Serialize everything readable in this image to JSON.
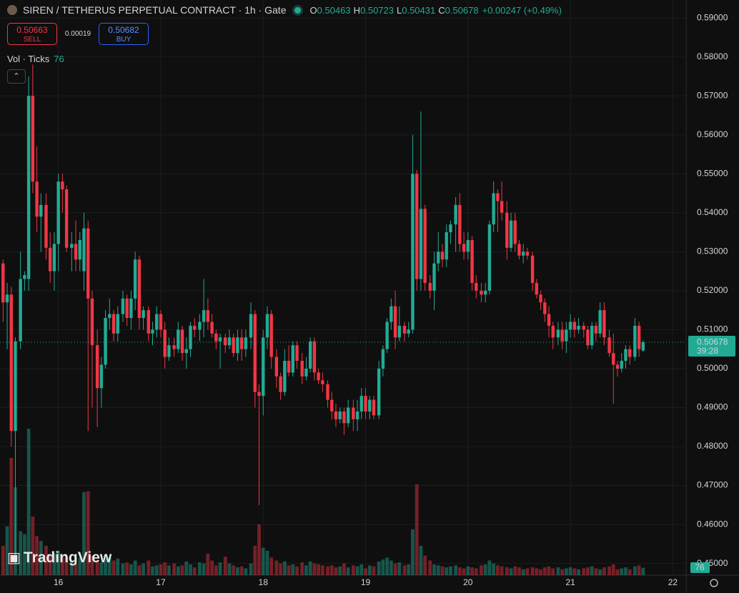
{
  "chart_data": {
    "type": "candlestick",
    "title": "SIREN / TETHERUS PERPETUAL CONTRACT · 1h · Gate",
    "ohlc_legend": [
      {
        "label": "O",
        "value": 0.50463
      },
      {
        "label": "H",
        "value": 0.50723
      },
      {
        "label": "L",
        "value": 0.50431
      },
      {
        "label": "C",
        "value": 0.50678
      }
    ],
    "change": "+0.00247 (+0.49%)",
    "trade_panel": {
      "sell_price": 0.50663,
      "sell_label": "SELL",
      "spread": 0.00019,
      "buy_price": 0.50682,
      "buy_label": "BUY"
    },
    "volume_indicator": {
      "label": "Vol · Ticks",
      "value": 76
    },
    "last_price": 0.50678,
    "countdown": "39:28",
    "last_volume": 76,
    "watermark": "TradingView",
    "up_color": "#22ab94",
    "down_color": "#f23645",
    "grid": true,
    "xlim": [
      15.43,
      22.13
    ],
    "xticks": [
      16,
      17,
      18,
      19,
      20,
      21,
      22
    ],
    "ylim": [
      0.447,
      0.5946
    ],
    "yticks": [
      {
        "value": 0.45,
        "label": "0.45000"
      },
      {
        "value": 0.46,
        "label": "0.46000"
      },
      {
        "value": 0.47,
        "label": "0.47000"
      },
      {
        "value": 0.48,
        "label": "0.48000"
      },
      {
        "value": 0.49,
        "label": "0.49000"
      },
      {
        "value": 0.5,
        "label": "0.50000"
      },
      {
        "value": 0.51,
        "label": "0.51000"
      },
      {
        "value": 0.52,
        "label": "0.52000"
      },
      {
        "value": 0.53,
        "label": "0.53000"
      },
      {
        "value": 0.54,
        "label": "0.54000"
      },
      {
        "value": 0.55,
        "label": "0.55000"
      },
      {
        "value": 0.56,
        "label": "0.56000"
      },
      {
        "value": 0.57,
        "label": "0.57000"
      },
      {
        "value": 0.58,
        "label": "0.58000"
      },
      {
        "value": 0.59,
        "label": "0.59000"
      }
    ],
    "x": [
      15.46,
      15.5,
      15.54,
      15.58,
      15.63,
      15.67,
      15.71,
      15.75,
      15.79,
      15.83,
      15.88,
      15.92,
      15.96,
      16.0,
      16.04,
      16.08,
      16.13,
      16.17,
      16.21,
      16.25,
      16.29,
      16.33,
      16.38,
      16.42,
      16.46,
      16.5,
      16.54,
      16.58,
      16.63,
      16.67,
      16.71,
      16.75,
      16.79,
      16.83,
      16.88,
      16.92,
      16.96,
      17.0,
      17.04,
      17.08,
      17.13,
      17.17,
      17.21,
      17.25,
      17.29,
      17.33,
      17.38,
      17.42,
      17.46,
      17.5,
      17.54,
      17.58,
      17.63,
      17.67,
      17.71,
      17.75,
      17.79,
      17.83,
      17.88,
      17.92,
      17.96,
      18.0,
      18.04,
      18.08,
      18.13,
      18.17,
      18.21,
      18.25,
      18.29,
      18.33,
      18.38,
      18.42,
      18.46,
      18.5,
      18.54,
      18.58,
      18.63,
      18.67,
      18.71,
      18.75,
      18.79,
      18.83,
      18.88,
      18.92,
      18.96,
      19.0,
      19.04,
      19.08,
      19.13,
      19.17,
      19.21,
      19.25,
      19.29,
      19.33,
      19.38,
      19.42,
      19.46,
      19.5,
      19.54,
      19.58,
      19.63,
      19.67,
      19.71,
      19.75,
      19.79,
      19.83,
      19.88,
      19.92,
      19.96,
      20.0,
      20.04,
      20.08,
      20.13,
      20.17,
      20.21,
      20.25,
      20.29,
      20.33,
      20.38,
      20.42,
      20.46,
      20.5,
      20.54,
      20.58,
      20.63,
      20.67,
      20.71,
      20.75,
      20.79,
      20.83,
      20.88,
      20.92,
      20.96,
      21.0,
      21.04,
      21.08,
      21.13,
      21.17,
      21.21,
      21.25,
      21.29,
      21.33,
      21.38,
      21.42,
      21.46,
      21.5,
      21.54,
      21.58,
      21.63,
      21.67,
      21.71
    ],
    "open": [
      0.527,
      0.517,
      0.519,
      0.484,
      0.507,
      0.523,
      0.523,
      0.57,
      0.548,
      0.539,
      0.542,
      0.531,
      0.525,
      0.532,
      0.548,
      0.546,
      0.531,
      0.532,
      0.528,
      0.525,
      0.536,
      0.518,
      0.506,
      0.495,
      0.501,
      0.513,
      0.514,
      0.509,
      0.514,
      0.518,
      0.513,
      0.518,
      0.528,
      0.513,
      0.515,
      0.509,
      0.51,
      0.514,
      0.51,
      0.503,
      0.506,
      0.505,
      0.51,
      0.504,
      0.505,
      0.511,
      0.51,
      0.512,
      0.515,
      0.512,
      0.509,
      0.507,
      0.508,
      0.506,
      0.508,
      0.504,
      0.508,
      0.505,
      0.508,
      0.514,
      0.494,
      0.493,
      0.508,
      0.514,
      0.503,
      0.498,
      0.494,
      0.502,
      0.499,
      0.506,
      0.502,
      0.498,
      0.5,
      0.507,
      0.499,
      0.497,
      0.496,
      0.492,
      0.489,
      0.487,
      0.489,
      0.486,
      0.49,
      0.487,
      0.489,
      0.493,
      0.489,
      0.492,
      0.488,
      0.5,
      0.505,
      0.512,
      0.516,
      0.508,
      0.511,
      0.509,
      0.51,
      0.55,
      0.523,
      0.541,
      0.522,
      0.52,
      0.527,
      0.53,
      0.528,
      0.535,
      0.537,
      0.542,
      0.532,
      0.53,
      0.533,
      0.522,
      0.52,
      0.519,
      0.52,
      0.537,
      0.545,
      0.543,
      0.54,
      0.531,
      0.538,
      0.532,
      0.529,
      0.53,
      0.529,
      0.522,
      0.519,
      0.517,
      0.514,
      0.511,
      0.508,
      0.51,
      0.507,
      0.51,
      0.512,
      0.51,
      0.511,
      0.51,
      0.506,
      0.511,
      0.509,
      0.515,
      0.508,
      0.504,
      0.501,
      0.5,
      0.502,
      0.505,
      0.503,
      0.511,
      0.50463
    ],
    "high": [
      0.528,
      0.522,
      0.521,
      0.508,
      0.53,
      0.525,
      0.575,
      0.578,
      0.557,
      0.545,
      0.545,
      0.535,
      0.535,
      0.55,
      0.55,
      0.547,
      0.535,
      0.538,
      0.535,
      0.54,
      0.538,
      0.52,
      0.51,
      0.503,
      0.515,
      0.518,
      0.515,
      0.516,
      0.52,
      0.519,
      0.52,
      0.53,
      0.529,
      0.516,
      0.516,
      0.512,
      0.516,
      0.515,
      0.512,
      0.508,
      0.508,
      0.512,
      0.511,
      0.508,
      0.512,
      0.513,
      0.514,
      0.523,
      0.518,
      0.514,
      0.51,
      0.509,
      0.509,
      0.51,
      0.509,
      0.51,
      0.51,
      0.51,
      0.517,
      0.515,
      0.496,
      0.51,
      0.516,
      0.515,
      0.505,
      0.499,
      0.505,
      0.506,
      0.507,
      0.507,
      0.504,
      0.503,
      0.508,
      0.508,
      0.5,
      0.499,
      0.497,
      0.494,
      0.491,
      0.49,
      0.49,
      0.492,
      0.492,
      0.492,
      0.495,
      0.495,
      0.493,
      0.493,
      0.502,
      0.506,
      0.513,
      0.518,
      0.52,
      0.516,
      0.512,
      0.512,
      0.56,
      0.551,
      0.566,
      0.542,
      0.524,
      0.53,
      0.535,
      0.532,
      0.537,
      0.538,
      0.544,
      0.545,
      0.535,
      0.535,
      0.534,
      0.524,
      0.522,
      0.522,
      0.538,
      0.548,
      0.546,
      0.548,
      0.543,
      0.54,
      0.54,
      0.533,
      0.532,
      0.531,
      0.53,
      0.523,
      0.52,
      0.518,
      0.516,
      0.512,
      0.512,
      0.512,
      0.512,
      0.514,
      0.513,
      0.513,
      0.512,
      0.511,
      0.512,
      0.512,
      0.517,
      0.517,
      0.51,
      0.509,
      0.502,
      0.504,
      0.506,
      0.506,
      0.513,
      0.512,
      0.50723
    ],
    "low": [
      0.512,
      0.505,
      0.48,
      0.45,
      0.505,
      0.52,
      0.52,
      0.545,
      0.535,
      0.53,
      0.528,
      0.522,
      0.52,
      0.525,
      0.54,
      0.53,
      0.525,
      0.525,
      0.525,
      0.52,
      0.484,
      0.49,
      0.485,
      0.49,
      0.5,
      0.51,
      0.507,
      0.507,
      0.512,
      0.511,
      0.51,
      0.515,
      0.51,
      0.51,
      0.507,
      0.506,
      0.508,
      0.508,
      0.5,
      0.502,
      0.503,
      0.504,
      0.502,
      0.5,
      0.503,
      0.508,
      0.507,
      0.508,
      0.51,
      0.508,
      0.505,
      0.5,
      0.504,
      0.505,
      0.503,
      0.502,
      0.502,
      0.503,
      0.505,
      0.49,
      0.465,
      0.488,
      0.505,
      0.5,
      0.495,
      0.492,
      0.493,
      0.498,
      0.498,
      0.5,
      0.496,
      0.497,
      0.499,
      0.497,
      0.496,
      0.494,
      0.49,
      0.487,
      0.485,
      0.486,
      0.483,
      0.485,
      0.484,
      0.484,
      0.487,
      0.487,
      0.487,
      0.487,
      0.487,
      0.498,
      0.504,
      0.51,
      0.505,
      0.507,
      0.507,
      0.508,
      0.509,
      0.52,
      0.52,
      0.52,
      0.518,
      0.515,
      0.525,
      0.526,
      0.526,
      0.532,
      0.53,
      0.53,
      0.528,
      0.528,
      0.52,
      0.518,
      0.517,
      0.517,
      0.519,
      0.535,
      0.535,
      0.538,
      0.528,
      0.53,
      0.53,
      0.528,
      0.527,
      0.528,
      0.52,
      0.518,
      0.515,
      0.512,
      0.508,
      0.505,
      0.506,
      0.505,
      0.504,
      0.508,
      0.508,
      0.509,
      0.508,
      0.505,
      0.505,
      0.507,
      0.508,
      0.506,
      0.503,
      0.491,
      0.498,
      0.499,
      0.5,
      0.501,
      0.502,
      0.503,
      0.50431
    ],
    "close": [
      0.517,
      0.519,
      0.484,
      0.507,
      0.523,
      0.524,
      0.57,
      0.548,
      0.539,
      0.542,
      0.531,
      0.525,
      0.532,
      0.548,
      0.546,
      0.531,
      0.532,
      0.528,
      0.533,
      0.536,
      0.518,
      0.506,
      0.495,
      0.501,
      0.513,
      0.514,
      0.509,
      0.514,
      0.518,
      0.513,
      0.518,
      0.528,
      0.513,
      0.515,
      0.509,
      0.51,
      0.514,
      0.51,
      0.503,
      0.506,
      0.505,
      0.51,
      0.504,
      0.505,
      0.511,
      0.51,
      0.512,
      0.515,
      0.512,
      0.509,
      0.507,
      0.508,
      0.506,
      0.508,
      0.504,
      0.508,
      0.505,
      0.508,
      0.514,
      0.494,
      0.493,
      0.508,
      0.514,
      0.503,
      0.498,
      0.494,
      0.502,
      0.499,
      0.506,
      0.502,
      0.498,
      0.5,
      0.507,
      0.499,
      0.497,
      0.496,
      0.492,
      0.489,
      0.487,
      0.489,
      0.486,
      0.49,
      0.487,
      0.489,
      0.493,
      0.489,
      0.492,
      0.488,
      0.5,
      0.505,
      0.512,
      0.516,
      0.508,
      0.511,
      0.509,
      0.51,
      0.55,
      0.523,
      0.541,
      0.522,
      0.52,
      0.527,
      0.53,
      0.528,
      0.535,
      0.537,
      0.542,
      0.532,
      0.53,
      0.533,
      0.522,
      0.52,
      0.519,
      0.52,
      0.537,
      0.545,
      0.543,
      0.54,
      0.531,
      0.538,
      0.532,
      0.529,
      0.53,
      0.529,
      0.522,
      0.519,
      0.517,
      0.514,
      0.511,
      0.508,
      0.51,
      0.507,
      0.51,
      0.512,
      0.51,
      0.511,
      0.51,
      0.506,
      0.511,
      0.509,
      0.515,
      0.508,
      0.504,
      0.501,
      0.5,
      0.502,
      0.505,
      0.503,
      0.511,
      0.505,
      0.50678
    ],
    "volume": [
      300,
      500,
      1200,
      900,
      450,
      420,
      1500,
      600,
      400,
      350,
      300,
      200,
      220,
      250,
      200,
      180,
      150,
      120,
      180,
      850,
      860,
      200,
      150,
      130,
      200,
      180,
      150,
      170,
      120,
      130,
      110,
      150,
      100,
      120,
      150,
      90,
      100,
      110,
      130,
      100,
      120,
      90,
      100,
      140,
      110,
      80,
      130,
      120,
      220,
      150,
      100,
      130,
      190,
      120,
      100,
      80,
      90,
      70,
      120,
      300,
      520,
      280,
      250,
      180,
      150,
      120,
      140,
      100,
      110,
      90,
      130,
      100,
      140,
      120,
      110,
      100,
      90,
      100,
      80,
      90,
      120,
      80,
      100,
      90,
      110,
      70,
      100,
      90,
      140,
      160,
      180,
      150,
      120,
      130,
      100,
      110,
      470,
      930,
      300,
      200,
      150,
      110,
      100,
      90,
      80,
      90,
      100,
      80,
      70,
      90,
      80,
      70,
      100,
      110,
      150,
      120,
      100,
      90,
      80,
      70,
      90,
      80,
      60,
      70,
      80,
      70,
      60,
      80,
      90,
      70,
      80,
      60,
      70,
      80,
      70,
      60,
      70,
      80,
      90,
      70,
      60,
      80,
      90,
      110,
      60,
      70,
      80,
      60,
      90,
      100,
      76
    ]
  }
}
